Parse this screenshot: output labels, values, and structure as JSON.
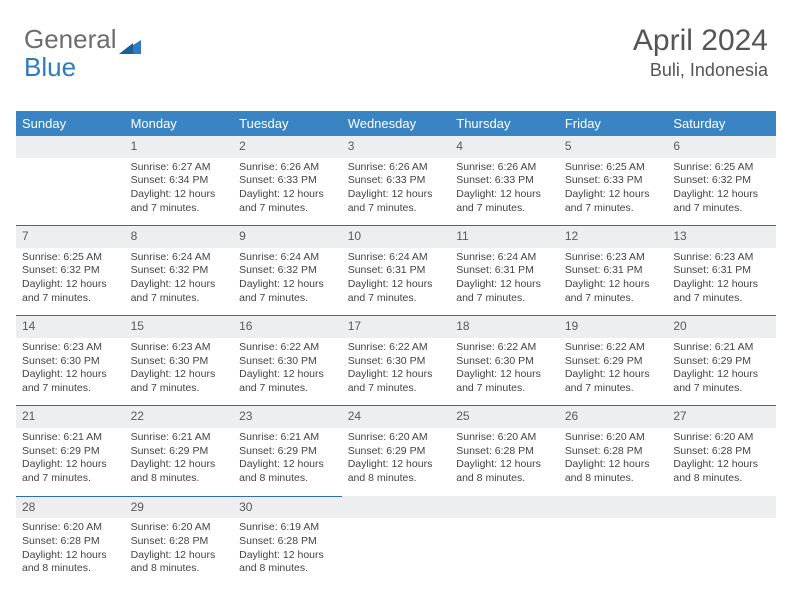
{
  "brand": {
    "word1": "General",
    "word2": "Blue"
  },
  "title": "April 2024",
  "location": "Buli, Indonesia",
  "colors": {
    "header_bg": "#3a84c4",
    "header_text": "#ffffff",
    "daynum_bg": "#eceef0",
    "row_divider": "#2f6fa8",
    "body_text": "#444444",
    "brand_gray": "#6d6d6d",
    "brand_blue": "#2f7bbf"
  },
  "weekdays": [
    "Sunday",
    "Monday",
    "Tuesday",
    "Wednesday",
    "Thursday",
    "Friday",
    "Saturday"
  ],
  "layout": {
    "start_blank_cells": 1,
    "days_in_month": 30
  },
  "days": {
    "1": {
      "sunrise": "6:27 AM",
      "sunset": "6:34 PM",
      "daylight": "12 hours and 7 minutes."
    },
    "2": {
      "sunrise": "6:26 AM",
      "sunset": "6:33 PM",
      "daylight": "12 hours and 7 minutes."
    },
    "3": {
      "sunrise": "6:26 AM",
      "sunset": "6:33 PM",
      "daylight": "12 hours and 7 minutes."
    },
    "4": {
      "sunrise": "6:26 AM",
      "sunset": "6:33 PM",
      "daylight": "12 hours and 7 minutes."
    },
    "5": {
      "sunrise": "6:25 AM",
      "sunset": "6:33 PM",
      "daylight": "12 hours and 7 minutes."
    },
    "6": {
      "sunrise": "6:25 AM",
      "sunset": "6:32 PM",
      "daylight": "12 hours and 7 minutes."
    },
    "7": {
      "sunrise": "6:25 AM",
      "sunset": "6:32 PM",
      "daylight": "12 hours and 7 minutes."
    },
    "8": {
      "sunrise": "6:24 AM",
      "sunset": "6:32 PM",
      "daylight": "12 hours and 7 minutes."
    },
    "9": {
      "sunrise": "6:24 AM",
      "sunset": "6:32 PM",
      "daylight": "12 hours and 7 minutes."
    },
    "10": {
      "sunrise": "6:24 AM",
      "sunset": "6:31 PM",
      "daylight": "12 hours and 7 minutes."
    },
    "11": {
      "sunrise": "6:24 AM",
      "sunset": "6:31 PM",
      "daylight": "12 hours and 7 minutes."
    },
    "12": {
      "sunrise": "6:23 AM",
      "sunset": "6:31 PM",
      "daylight": "12 hours and 7 minutes."
    },
    "13": {
      "sunrise": "6:23 AM",
      "sunset": "6:31 PM",
      "daylight": "12 hours and 7 minutes."
    },
    "14": {
      "sunrise": "6:23 AM",
      "sunset": "6:30 PM",
      "daylight": "12 hours and 7 minutes."
    },
    "15": {
      "sunrise": "6:23 AM",
      "sunset": "6:30 PM",
      "daylight": "12 hours and 7 minutes."
    },
    "16": {
      "sunrise": "6:22 AM",
      "sunset": "6:30 PM",
      "daylight": "12 hours and 7 minutes."
    },
    "17": {
      "sunrise": "6:22 AM",
      "sunset": "6:30 PM",
      "daylight": "12 hours and 7 minutes."
    },
    "18": {
      "sunrise": "6:22 AM",
      "sunset": "6:30 PM",
      "daylight": "12 hours and 7 minutes."
    },
    "19": {
      "sunrise": "6:22 AM",
      "sunset": "6:29 PM",
      "daylight": "12 hours and 7 minutes."
    },
    "20": {
      "sunrise": "6:21 AM",
      "sunset": "6:29 PM",
      "daylight": "12 hours and 7 minutes."
    },
    "21": {
      "sunrise": "6:21 AM",
      "sunset": "6:29 PM",
      "daylight": "12 hours and 7 minutes."
    },
    "22": {
      "sunrise": "6:21 AM",
      "sunset": "6:29 PM",
      "daylight": "12 hours and 8 minutes."
    },
    "23": {
      "sunrise": "6:21 AM",
      "sunset": "6:29 PM",
      "daylight": "12 hours and 8 minutes."
    },
    "24": {
      "sunrise": "6:20 AM",
      "sunset": "6:29 PM",
      "daylight": "12 hours and 8 minutes."
    },
    "25": {
      "sunrise": "6:20 AM",
      "sunset": "6:28 PM",
      "daylight": "12 hours and 8 minutes."
    },
    "26": {
      "sunrise": "6:20 AM",
      "sunset": "6:28 PM",
      "daylight": "12 hours and 8 minutes."
    },
    "27": {
      "sunrise": "6:20 AM",
      "sunset": "6:28 PM",
      "daylight": "12 hours and 8 minutes."
    },
    "28": {
      "sunrise": "6:20 AM",
      "sunset": "6:28 PM",
      "daylight": "12 hours and 8 minutes."
    },
    "29": {
      "sunrise": "6:20 AM",
      "sunset": "6:28 PM",
      "daylight": "12 hours and 8 minutes."
    },
    "30": {
      "sunrise": "6:19 AM",
      "sunset": "6:28 PM",
      "daylight": "12 hours and 8 minutes."
    }
  }
}
